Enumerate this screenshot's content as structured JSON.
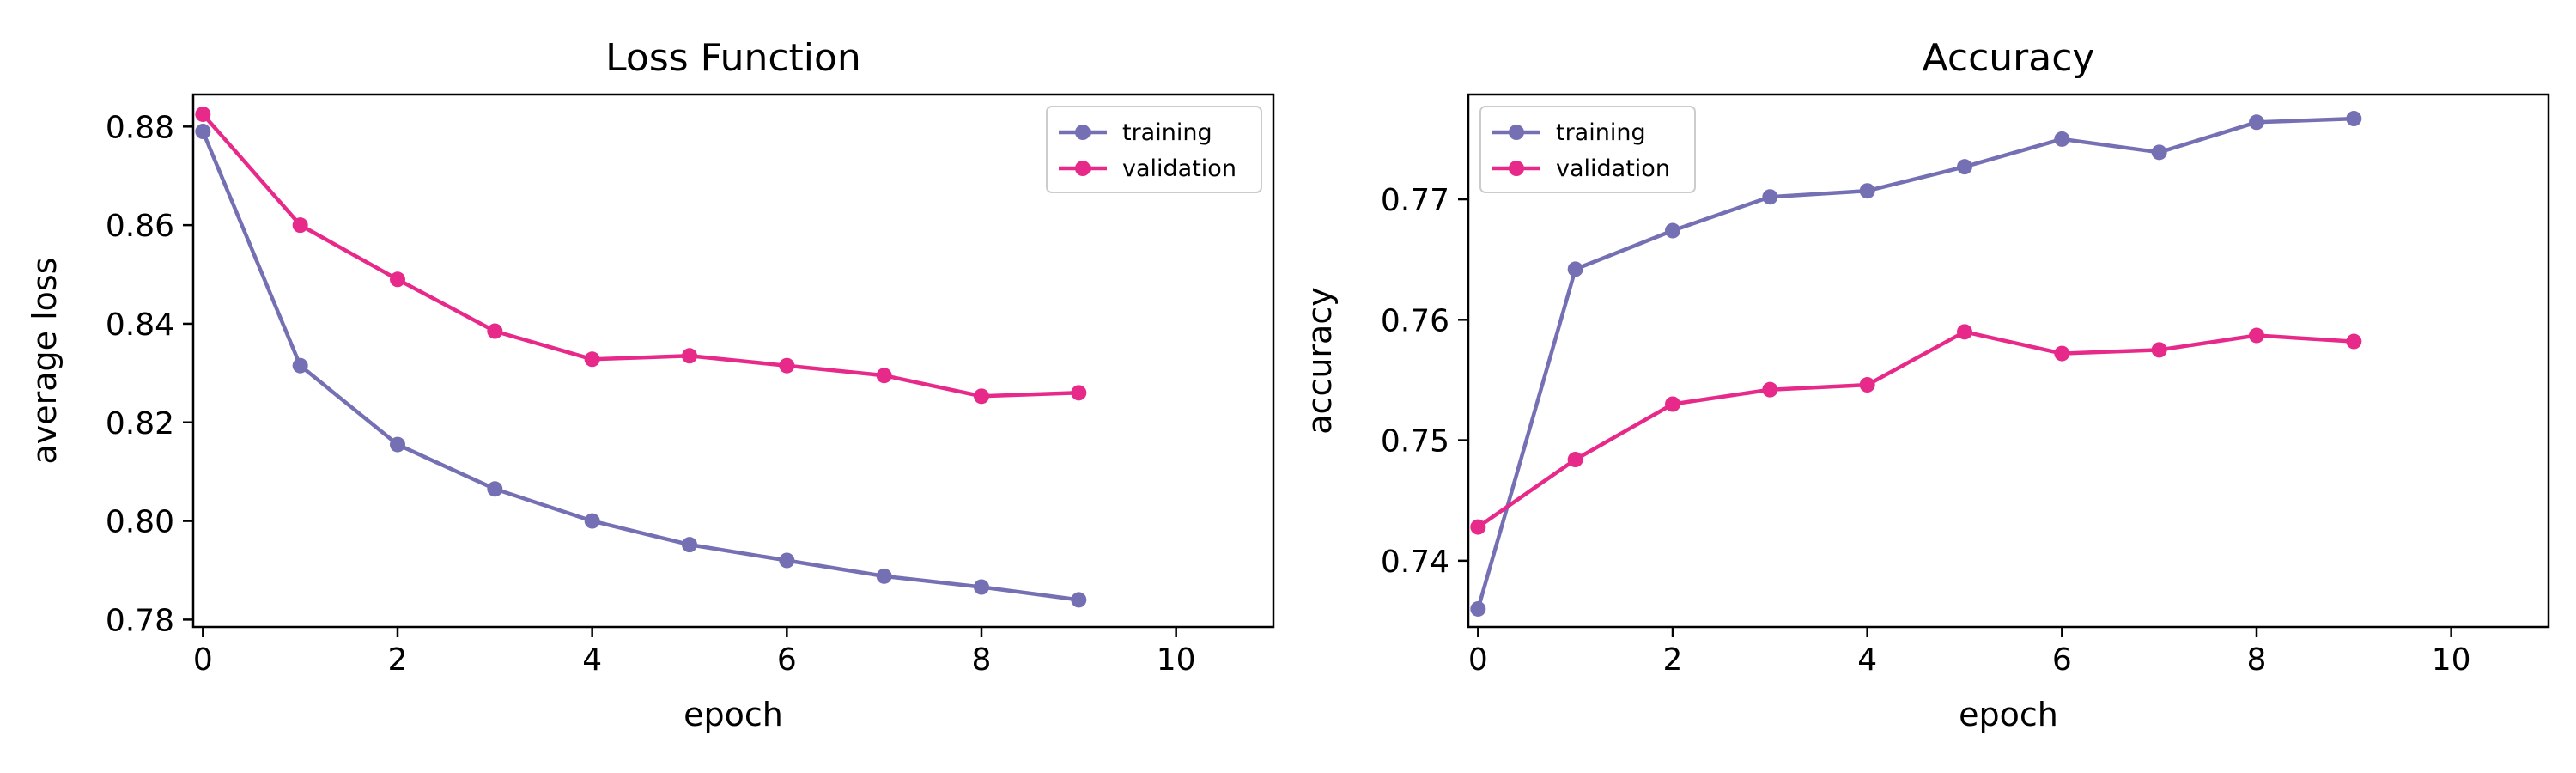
{
  "chart_data": [
    {
      "type": "line",
      "title": "Loss Function",
      "xlabel": "epoch",
      "ylabel": "average loss",
      "xlim": [
        -0.1,
        11
      ],
      "ylim": [
        0.7785,
        0.8865
      ],
      "xticks": [
        0,
        2,
        4,
        6,
        8,
        10
      ],
      "yticks": [
        0.78,
        0.8,
        0.82,
        0.84,
        0.86,
        0.88
      ],
      "ytick_labels": [
        "0.78",
        "0.80",
        "0.82",
        "0.84",
        "0.86",
        "0.88"
      ],
      "legend_placement": "top-right",
      "x": [
        0,
        1,
        2,
        3,
        4,
        5,
        6,
        7,
        8,
        9
      ],
      "series": [
        {
          "name": "training",
          "color": "#7570b3",
          "values": [
            0.879,
            0.8315,
            0.8155,
            0.8065,
            0.8,
            0.7952,
            0.792,
            0.7888,
            0.7866,
            0.784
          ]
        },
        {
          "name": "validation",
          "color": "#e7298a",
          "values": [
            0.8825,
            0.86,
            0.849,
            0.8385,
            0.8328,
            0.8335,
            0.8315,
            0.8295,
            0.8253,
            0.826
          ]
        }
      ]
    },
    {
      "type": "line",
      "title": "Accuracy",
      "xlabel": "epoch",
      "ylabel": "accuracy",
      "xlim": [
        -0.1,
        11
      ],
      "ylim": [
        0.7345,
        0.7787
      ],
      "xticks": [
        0,
        2,
        4,
        6,
        8,
        10
      ],
      "yticks": [
        0.74,
        0.75,
        0.76,
        0.77
      ],
      "ytick_labels": [
        "0.74",
        "0.75",
        "0.76",
        "0.77"
      ],
      "legend_placement": "top-left",
      "x": [
        0,
        1,
        2,
        3,
        4,
        5,
        6,
        7,
        8,
        9
      ],
      "series": [
        {
          "name": "training",
          "color": "#7570b3",
          "values": [
            0.736,
            0.7642,
            0.7674,
            0.7702,
            0.7707,
            0.7727,
            0.775,
            0.7739,
            0.7764,
            0.7767
          ]
        },
        {
          "name": "validation",
          "color": "#e7298a",
          "values": [
            0.7428,
            0.7484,
            0.753,
            0.7542,
            0.7546,
            0.759,
            0.7572,
            0.7575,
            0.7587,
            0.7582
          ]
        }
      ]
    }
  ]
}
